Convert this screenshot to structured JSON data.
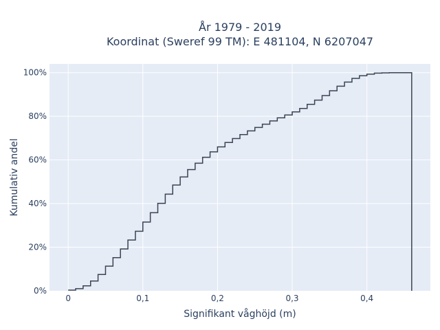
{
  "chart_data": {
    "type": "line",
    "title_line1": "År 1979 - 2019",
    "title_line2": "Koordinat (Sweref 99 TM): E 481104, N 6207047",
    "xlabel": "Signifikant våghöjd (m)",
    "ylabel": "Kumulativ andel",
    "xlim": [
      -0.025,
      0.485
    ],
    "ylim": [
      0,
      1.04
    ],
    "x_ticks": [
      0,
      0.1,
      0.2,
      0.3,
      0.4
    ],
    "x_tick_labels": [
      "0",
      "0,1",
      "0,2",
      "0,3",
      "0,4"
    ],
    "y_ticks": [
      0,
      0.2,
      0.4,
      0.6,
      0.8,
      1.0
    ],
    "y_tick_labels": [
      "0%",
      "20%",
      "40%",
      "60%",
      "80%",
      "100%"
    ],
    "grid": true,
    "line_color": "#3a4352",
    "plot_bg": "#e5ecf6",
    "step": 0.01,
    "series": [
      {
        "x": [
          0,
          0.01,
          0.02,
          0.03,
          0.04,
          0.05,
          0.06,
          0.07,
          0.08,
          0.09,
          0.1,
          0.11,
          0.12,
          0.13,
          0.14,
          0.15,
          0.16,
          0.17,
          0.18,
          0.19,
          0.2,
          0.21,
          0.22,
          0.23,
          0.24,
          0.25,
          0.26,
          0.27,
          0.28,
          0.29,
          0.3,
          0.31,
          0.32,
          0.33,
          0.34,
          0.35,
          0.36,
          0.37,
          0.38,
          0.39,
          0.4,
          0.41,
          0.42,
          0.43,
          0.44,
          0.45,
          0.46
        ],
        "y": [
          0.003,
          0.01,
          0.023,
          0.045,
          0.075,
          0.113,
          0.152,
          0.192,
          0.233,
          0.273,
          0.315,
          0.358,
          0.401,
          0.443,
          0.485,
          0.522,
          0.556,
          0.585,
          0.612,
          0.637,
          0.66,
          0.68,
          0.698,
          0.716,
          0.733,
          0.749,
          0.764,
          0.779,
          0.793,
          0.806,
          0.82,
          0.836,
          0.855,
          0.874,
          0.895,
          0.917,
          0.938,
          0.957,
          0.974,
          0.986,
          0.993,
          0.998,
          0.999,
          1.0,
          1.0,
          1.0,
          0
        ]
      }
    ]
  }
}
